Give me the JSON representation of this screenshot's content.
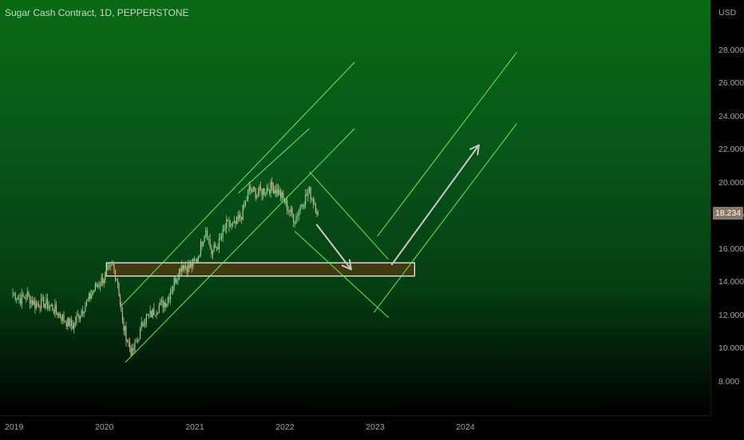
{
  "header": {
    "title": "Sugar Cash Contract, 1D, PEPPERSTONE"
  },
  "price_axis": {
    "currency": "USD",
    "last_price": "18.234"
  },
  "colors": {
    "background_top": "#0a6a14",
    "background_bottom": "#000000",
    "channel_lines": "#66ff66",
    "arrows": "#c8c8c8",
    "support_zone_fill": "#4a3a12",
    "support_zone_border": "#ffffff",
    "candle_up": "#8fd18f",
    "candle_down": "#c9b48c"
  },
  "chart_data": {
    "type": "line",
    "title": "Sugar Cash Contract, 1D, PEPPERSTONE",
    "ylabel": "USD",
    "ylim": [
      7,
      31
    ],
    "xlim": [
      "2019-01-01",
      "2024-12-31"
    ],
    "y_ticks": [
      8.0,
      10.0,
      12.0,
      14.0,
      16.0,
      18.0,
      20.0,
      22.0,
      24.0,
      26.0,
      28.0
    ],
    "y_tick_labels": [
      "8.000",
      "10.000",
      "12.000",
      "14.000",
      "16.000",
      "18.000",
      "20.000",
      "22.000",
      "24.000",
      "26.000",
      "28.000"
    ],
    "x_ticks": [
      "2019-01-01",
      "2020-01-01",
      "2021-01-01",
      "2022-01-01",
      "2023-01-01",
      "2024-01-01"
    ],
    "x_tick_labels": [
      "2019",
      "2020",
      "2021",
      "2022",
      "2023",
      "2024"
    ],
    "price_series": {
      "dates": [
        "2019-01-01",
        "2019-02-01",
        "2019-03-01",
        "2019-04-01",
        "2019-05-01",
        "2019-06-01",
        "2019-07-01",
        "2019-08-01",
        "2019-09-01",
        "2019-10-01",
        "2019-11-01",
        "2019-12-01",
        "2020-01-15",
        "2020-02-10",
        "2020-03-01",
        "2020-03-20",
        "2020-04-28",
        "2020-05-20",
        "2020-06-15",
        "2020-07-15",
        "2020-08-15",
        "2020-09-15",
        "2020-10-15",
        "2020-11-15",
        "2020-12-15",
        "2021-01-15",
        "2021-02-20",
        "2021-03-15",
        "2021-04-15",
        "2021-05-15",
        "2021-06-15",
        "2021-07-15",
        "2021-08-15",
        "2021-09-15",
        "2021-10-15",
        "2021-11-15",
        "2021-12-15",
        "2022-01-15",
        "2022-02-15",
        "2022-03-15",
        "2022-04-15",
        "2022-05-01",
        "2022-05-20"
      ],
      "values": [
        13.4,
        13.0,
        13.2,
        12.7,
        12.8,
        12.6,
        12.2,
        11.7,
        11.4,
        12.2,
        12.9,
        13.7,
        14.5,
        15.0,
        14.0,
        11.5,
        9.7,
        10.6,
        11.8,
        12.1,
        12.6,
        12.9,
        14.1,
        15.1,
        14.9,
        15.4,
        17.3,
        15.8,
        16.4,
        17.5,
        17.4,
        18.1,
        19.6,
        19.4,
        19.6,
        19.8,
        19.4,
        18.6,
        17.8,
        18.8,
        19.5,
        19.0,
        18.2
      ]
    },
    "support_zone": {
      "from": "2020-01-15",
      "to": "2023-06-15",
      "y_low": 14.4,
      "y_high": 15.2
    },
    "channel_lines": [
      {
        "name": "",
        "points": [
          [
            "2020-03-15",
            12.6
          ],
          [
            "2022-10-15",
            27.3
          ]
        ]
      },
      {
        "name": "",
        "points": [
          [
            "2020-04-01",
            9.2
          ],
          [
            "2022-10-15",
            23.3
          ]
        ]
      },
      {
        "name": "",
        "points": [
          [
            "2021-07-01",
            19.4
          ],
          [
            "2022-04-15",
            23.3
          ]
        ]
      },
      {
        "name": "",
        "points": [
          [
            "2022-04-15",
            20.7
          ],
          [
            "2023-03-01",
            15.4
          ]
        ]
      },
      {
        "name": "",
        "points": [
          [
            "2022-02-15",
            17.1
          ],
          [
            "2023-03-01",
            11.9
          ]
        ]
      },
      {
        "name": "",
        "points": [
          [
            "2023-01-15",
            16.8
          ],
          [
            "2024-08-01",
            27.9
          ]
        ]
      },
      {
        "name": "",
        "points": [
          [
            "2023-01-01",
            12.2
          ],
          [
            "2024-08-01",
            23.6
          ]
        ]
      }
    ],
    "projection_arrows": [
      {
        "from": [
          "2022-05-15",
          17.5
        ],
        "to": [
          "2022-10-01",
          14.8
        ]
      },
      {
        "from": [
          "2023-03-15",
          15.1
        ],
        "to": [
          "2024-03-01",
          22.3
        ]
      }
    ]
  }
}
